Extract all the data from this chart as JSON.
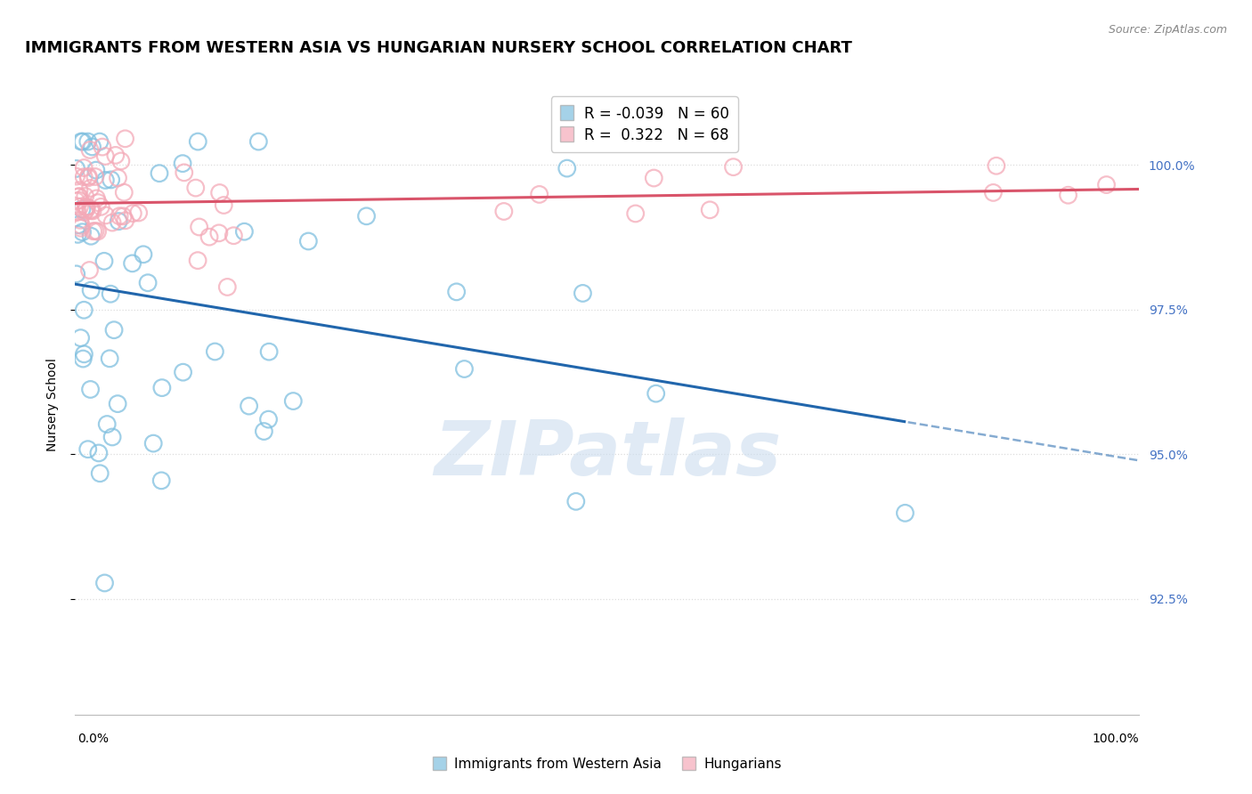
{
  "title": "IMMIGRANTS FROM WESTERN ASIA VS HUNGARIAN NURSERY SCHOOL CORRELATION CHART",
  "source": "Source: ZipAtlas.com",
  "ylabel": "Nursery School",
  "xlim": [
    0.0,
    100.0
  ],
  "ylim": [
    90.5,
    101.2
  ],
  "yticks": [
    92.5,
    95.0,
    97.5,
    100.0
  ],
  "r_blue": -0.039,
  "n_blue": 60,
  "r_pink": 0.322,
  "n_pink": 68,
  "blue_scatter_color": "#7fbfdf",
  "pink_scatter_color": "#f4aab8",
  "blue_line_color": "#2166ac",
  "pink_line_color": "#d9546a",
  "grid_color": "#dddddd",
  "watermark_color": "#ccddef",
  "watermark": "ZIPatlas",
  "legend1_label": "Immigrants from Western Asia",
  "legend2_label": "Hungarians",
  "title_fontsize": 13,
  "label_fontsize": 10,
  "tick_fontsize": 10,
  "source_fontsize": 9
}
